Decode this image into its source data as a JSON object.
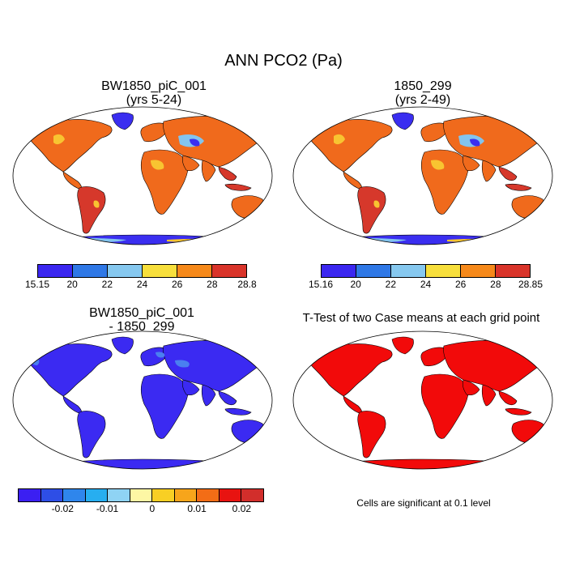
{
  "page": {
    "title": "ANN PCO2 (Pa)"
  },
  "panels": [
    {
      "id": "case1",
      "title_line1": "BW1850_piC_001",
      "title_line2": "(yrs 5-24)",
      "colorbar": {
        "colors": [
          "#3b27f0",
          "#2f78e6",
          "#86c8ef",
          "#f7df3c",
          "#f6891a",
          "#d9342a"
        ],
        "labels": [
          "15.15",
          "20",
          "22",
          "24",
          "26",
          "28",
          "28.8"
        ]
      }
    },
    {
      "id": "case2",
      "title_line1": "1850_299",
      "title_line2": "(yrs 2-49)",
      "colorbar": {
        "colors": [
          "#3b27f0",
          "#2f78e6",
          "#86c8ef",
          "#f7df3c",
          "#f6891a",
          "#d9342a"
        ],
        "labels": [
          "15.16",
          "20",
          "22",
          "24",
          "26",
          "28",
          "28.85"
        ]
      }
    },
    {
      "id": "diff",
      "title_line1": "BW1850_piC_001",
      "title_line2": "- 1850_299",
      "colorbar": {
        "colors": [
          "#3b1ff2",
          "#2e4ee6",
          "#2f86ec",
          "#27aef0",
          "#8fd3f4",
          "#fdf7a4",
          "#f8cf24",
          "#f7a51b",
          "#f36d16",
          "#e81310",
          "#d22e2b"
        ],
        "labels": [
          "-0.02",
          "-0.01",
          "0",
          "0.01",
          "0.02"
        ]
      }
    },
    {
      "id": "ttest",
      "title_line1": "T-Test of two Case means at each grid point",
      "note": "Cells are significant at 0.1 level"
    }
  ],
  "map_colors": {
    "land_high": "#f06a1c",
    "land_top": "#d6382b",
    "land_mid": "#f8c431",
    "land_low": "#83c4ee",
    "land_min": "#3a2ef0",
    "diff_land": "#3b2af2",
    "diff_light": "#4a7ff0",
    "ttest_land": "#f20a0a"
  }
}
